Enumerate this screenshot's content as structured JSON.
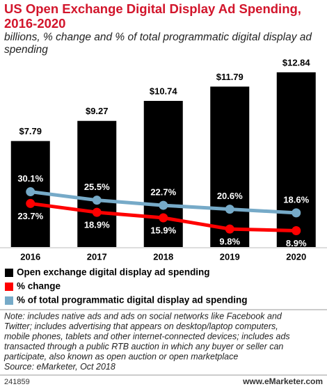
{
  "chart_data": {
    "type": "bar",
    "title": "US Open Exchange Digital Display Ad Spending, 2016-2020",
    "subtitle": "billions, % change and % of total programmatic digital display ad spending",
    "categories": [
      "2016",
      "2017",
      "2018",
      "2019",
      "2020"
    ],
    "ylim": [
      0,
      13.5
    ],
    "y2lim": [
      0,
      100
    ],
    "series": [
      {
        "name": "Open exchange digital display ad spending",
        "type": "bar",
        "color": "#000000",
        "values": [
          7.79,
          9.27,
          10.74,
          11.79,
          12.84
        ],
        "value_labels": [
          "$7.79",
          "$9.27",
          "$10.74",
          "$11.79",
          "$12.84"
        ]
      },
      {
        "name": "% change",
        "type": "line",
        "axis": "y2",
        "color": "#ff0000",
        "values": [
          23.7,
          18.9,
          15.9,
          9.8,
          8.9
        ],
        "value_labels": [
          "23.7%",
          "18.9%",
          "15.9%",
          "9.8%",
          "8.9%"
        ]
      },
      {
        "name": "% of total programmatic digital display ad spending",
        "type": "line",
        "axis": "y2",
        "color": "#76aac8",
        "values": [
          30.1,
          25.5,
          22.7,
          20.6,
          18.6
        ],
        "value_labels": [
          "30.1%",
          "25.5%",
          "22.7%",
          "20.6%",
          "18.6%"
        ]
      }
    ],
    "note": [
      "Note: includes native ads and ads on social networks like Facebook and",
      "Twitter; includes advertising that appears on desktop/laptop computers,",
      "mobile phones, tablets and other internet-connected devices; includes ads",
      "transacted through a public RTB auction in which any buyer or seller can",
      "participate, also known as open auction or open marketplace"
    ],
    "source": "Source: eMarketer, Oct 2018",
    "chart_id": "241859",
    "website": "www.eMarketer.com"
  }
}
